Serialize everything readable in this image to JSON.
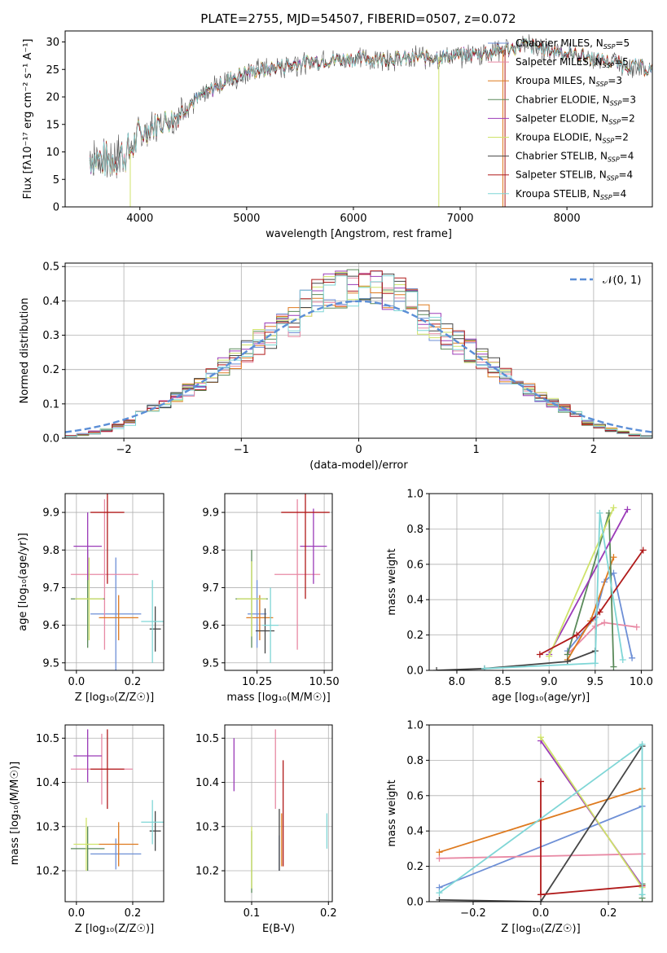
{
  "figure_title": "PLATE=2755, MJD=54507, FIBERID=0507, z=0.072",
  "colors": {
    "chabrier_miles": "#6d8fd6",
    "salpeter_miles": "#e889a4",
    "kroupa_miles": "#de7a1f",
    "chabrier_elodie": "#5a8a5a",
    "salpeter_elodie": "#9b3bb8",
    "kroupa_elodie": "#cfe36a",
    "chabrier_stelib": "#454545",
    "salpeter_stelib": "#b01a1a",
    "kroupa_stelib": "#7fd6d6",
    "gauss": "#5b8ed6",
    "data": "#555555"
  },
  "chart_data": [
    {
      "id": "spectrum",
      "type": "line",
      "xlabel": "wavelength [Angstrom, rest frame]",
      "ylabel": "Flux [fλ10⁻¹⁷ erg cm⁻² s⁻¹ A⁻¹]",
      "xlim": [
        3300,
        8800
      ],
      "ylim": [
        0,
        32
      ],
      "xticks": [
        4000,
        5000,
        6000,
        7000,
        8000
      ],
      "yticks": [
        0,
        5,
        10,
        15,
        20,
        25,
        30
      ],
      "legend_position": "right",
      "legend": [
        {
          "key": "chabrier_miles",
          "label": "Chabrier MILES, N_SSP=5"
        },
        {
          "key": "salpeter_miles",
          "label": "Salpeter MILES, N_SSP=5"
        },
        {
          "key": "kroupa_miles",
          "label": "Kroupa MILES, N_SSP=3"
        },
        {
          "key": "chabrier_elodie",
          "label": "Chabrier ELODIE, N_SSP=3"
        },
        {
          "key": "salpeter_elodie",
          "label": "Salpeter ELODIE, N_SSP=2"
        },
        {
          "key": "kroupa_elodie",
          "label": "Kroupa ELODIE, N_SSP=2"
        },
        {
          "key": "chabrier_stelib",
          "label": "Chabrier STELIB, N_SSP=4"
        },
        {
          "key": "salpeter_stelib",
          "label": "Salpeter STELIB, N_SSP=4"
        },
        {
          "key": "kroupa_stelib",
          "label": "Kroupa STELIB, N_SSP=4"
        }
      ],
      "continuum": {
        "x": [
          3530,
          3700,
          3900,
          4000,
          4150,
          4300,
          4500,
          4800,
          5000,
          5300,
          5600,
          6000,
          6500,
          7000,
          7400,
          7600,
          8000,
          8500,
          8800
        ],
        "y": [
          9,
          8.5,
          10,
          13,
          15,
          16,
          19,
          23,
          24.5,
          25.5,
          26.5,
          27,
          27,
          27.5,
          28.5,
          29.5,
          28,
          26,
          25
        ]
      },
      "wavelength_range": [
        3530,
        8800
      ]
    },
    {
      "id": "residuals",
      "type": "histogram",
      "xlabel": "(data-model)/error",
      "ylabel": "Normed distribution",
      "xlim": [
        -2.5,
        2.5
      ],
      "ylim": [
        0,
        0.51
      ],
      "xticks": [
        -2,
        -1,
        0,
        1,
        2
      ],
      "yticks": [
        0.0,
        0.1,
        0.2,
        0.3,
        0.4,
        0.5
      ],
      "grid": true,
      "legend_position": "top-right",
      "gauss_label": "𝒩(0, 1)",
      "bin_width": 0.1,
      "x_range": [
        -2.5,
        2.5
      ],
      "series_keys": [
        "chabrier_miles",
        "salpeter_miles",
        "kroupa_miles",
        "chabrier_elodie",
        "salpeter_elodie",
        "kroupa_elodie",
        "chabrier_stelib",
        "salpeter_stelib",
        "kroupa_stelib"
      ]
    },
    {
      "id": "age_vs_Z",
      "type": "errorbar",
      "xlabel": "Z [log₁₀(Z/Z☉)]",
      "ylabel": "age  [log₁₀(age/yr)]",
      "xlim": [
        -0.04,
        0.31
      ],
      "ylim": [
        9.48,
        9.95
      ],
      "xticks": [
        0.0,
        0.2
      ],
      "yticks": [
        9.5,
        9.6,
        9.7,
        9.8,
        9.9
      ],
      "grid": true,
      "points": [
        {
          "key": "chabrier_miles",
          "x": 0.14,
          "y": 9.63,
          "xerr": 0.09,
          "yerr": 0.15
        },
        {
          "key": "salpeter_miles",
          "x": 0.1,
          "y": 9.735,
          "xerr": 0.12,
          "yerr": 0.2
        },
        {
          "key": "kroupa_miles",
          "x": 0.15,
          "y": 9.62,
          "xerr": 0.07,
          "yerr": 0.06
        },
        {
          "key": "chabrier_elodie",
          "x": 0.04,
          "y": 9.67,
          "xerr": 0.06,
          "yerr": 0.13
        },
        {
          "key": "salpeter_elodie",
          "x": 0.04,
          "y": 9.81,
          "xerr": 0.05,
          "yerr": 0.09
        },
        {
          "key": "kroupa_elodie",
          "x": 0.045,
          "y": 9.67,
          "xerr": 0.05,
          "yerr": 0.11
        },
        {
          "key": "chabrier_stelib",
          "x": 0.28,
          "y": 9.59,
          "xerr": 0.02,
          "yerr": 0.06
        },
        {
          "key": "salpeter_stelib",
          "x": 0.11,
          "y": 9.9,
          "xerr": 0.06,
          "yerr": 0.19
        },
        {
          "key": "kroupa_stelib",
          "x": 0.27,
          "y": 9.61,
          "xerr": 0.04,
          "yerr": 0.11
        }
      ]
    },
    {
      "id": "age_vs_mass",
      "type": "errorbar",
      "xlabel": "mass [log₁₀(M/M☉)]",
      "ylabel": "",
      "xlim": [
        10.13,
        10.53
      ],
      "ylim": [
        9.48,
        9.95
      ],
      "xticks": [
        10.25,
        10.5
      ],
      "yticks": [
        9.5,
        9.6,
        9.7,
        9.8,
        9.9
      ],
      "grid": true,
      "points": [
        {
          "key": "chabrier_miles",
          "x": 10.25,
          "y": 9.63,
          "xerr": 0.035,
          "yerr": 0.09
        },
        {
          "key": "salpeter_miles",
          "x": 10.4,
          "y": 9.735,
          "xerr": 0.085,
          "yerr": 0.2
        },
        {
          "key": "kroupa_miles",
          "x": 10.26,
          "y": 9.62,
          "xerr": 0.05,
          "yerr": 0.06
        },
        {
          "key": "chabrier_elodie",
          "x": 10.23,
          "y": 9.67,
          "xerr": 0.06,
          "yerr": 0.13
        },
        {
          "key": "salpeter_elodie",
          "x": 10.46,
          "y": 9.81,
          "xerr": 0.05,
          "yerr": 0.1
        },
        {
          "key": "kroupa_elodie",
          "x": 10.23,
          "y": 9.67,
          "xerr": 0.055,
          "yerr": 0.1
        },
        {
          "key": "chabrier_stelib",
          "x": 10.28,
          "y": 9.585,
          "xerr": 0.035,
          "yerr": 0.06
        },
        {
          "key": "salpeter_stelib",
          "x": 10.43,
          "y": 9.9,
          "xerr": 0.09,
          "yerr": 0.23
        },
        {
          "key": "kroupa_stelib",
          "x": 10.3,
          "y": 9.6,
          "xerr": 0.03,
          "yerr": 0.1
        }
      ]
    },
    {
      "id": "massweight_vs_age",
      "type": "line",
      "xlabel": "age  [log₁₀(age/yr)]",
      "ylabel": "mass weight",
      "xlim": [
        7.7,
        10.12
      ],
      "ylim": [
        0,
        1.0
      ],
      "xticks": [
        8.0,
        8.5,
        9.0,
        9.5,
        10.0
      ],
      "yticks": [
        0.0,
        0.2,
        0.4,
        0.6,
        0.8,
        1.0
      ],
      "grid": true,
      "series": [
        {
          "key": "chabrier_miles",
          "x": [
            9.2,
            9.5,
            9.6,
            9.7,
            9.9
          ],
          "y": [
            0.11,
            0.3,
            0.5,
            0.55,
            0.07
          ]
        },
        {
          "key": "salpeter_miles",
          "x": [
            9.2,
            9.5,
            9.6,
            9.95
          ],
          "y": [
            0.09,
            0.25,
            0.27,
            0.245
          ]
        },
        {
          "key": "kroupa_miles",
          "x": [
            9.2,
            9.45,
            9.7
          ],
          "y": [
            0.06,
            0.28,
            0.64
          ]
        },
        {
          "key": "chabrier_elodie",
          "x": [
            9.2,
            9.65,
            9.7
          ],
          "y": [
            0.09,
            0.89,
            0.02
          ]
        },
        {
          "key": "salpeter_elodie",
          "x": [
            9.0,
            9.85
          ],
          "y": [
            0.09,
            0.91
          ]
        },
        {
          "key": "kroupa_elodie",
          "x": [
            9.0,
            9.7
          ],
          "y": [
            0.08,
            0.92
          ]
        },
        {
          "key": "chabrier_stelib",
          "x": [
            7.78,
            8.3,
            9.2,
            9.5
          ],
          "y": [
            0.0,
            0.01,
            0.05,
            0.11
          ]
        },
        {
          "key": "salpeter_stelib",
          "x": [
            8.9,
            9.3,
            9.55,
            10.02
          ],
          "y": [
            0.09,
            0.2,
            0.33,
            0.68
          ]
        },
        {
          "key": "kroupa_stelib",
          "x": [
            8.3,
            9.5,
            9.55,
            9.8
          ],
          "y": [
            0.01,
            0.04,
            0.89,
            0.06
          ]
        }
      ]
    },
    {
      "id": "mass_vs_Z",
      "type": "errorbar",
      "xlabel": "Z [log₁₀(Z/Z☉)]",
      "ylabel": "mass [log₁₀(M/M☉)]",
      "xlim": [
        -0.04,
        0.31
      ],
      "ylim": [
        10.13,
        10.53
      ],
      "xticks": [
        0.0,
        0.2
      ],
      "yticks": [
        10.2,
        10.3,
        10.4,
        10.5
      ],
      "grid": true,
      "points": [
        {
          "key": "chabrier_miles",
          "x": 0.14,
          "y": 10.238,
          "xerr": 0.09,
          "yerr": 0.035
        },
        {
          "key": "salpeter_miles",
          "x": 0.09,
          "y": 10.43,
          "xerr": 0.11,
          "yerr": 0.08
        },
        {
          "key": "kroupa_miles",
          "x": 0.15,
          "y": 10.26,
          "xerr": 0.07,
          "yerr": 0.05
        },
        {
          "key": "chabrier_elodie",
          "x": 0.04,
          "y": 10.25,
          "xerr": 0.06,
          "yerr": 0.05
        },
        {
          "key": "salpeter_elodie",
          "x": 0.04,
          "y": 10.46,
          "xerr": 0.05,
          "yerr": 0.06
        },
        {
          "key": "kroupa_elodie",
          "x": 0.035,
          "y": 10.26,
          "xerr": 0.045,
          "yerr": 0.06
        },
        {
          "key": "chabrier_stelib",
          "x": 0.28,
          "y": 10.29,
          "xerr": 0.02,
          "yerr": 0.045
        },
        {
          "key": "salpeter_stelib",
          "x": 0.11,
          "y": 10.43,
          "xerr": 0.06,
          "yerr": 0.09
        },
        {
          "key": "kroupa_stelib",
          "x": 0.27,
          "y": 10.31,
          "xerr": 0.04,
          "yerr": 0.05
        }
      ]
    },
    {
      "id": "mass_vs_ebv",
      "type": "errorbar",
      "xlabel": "E(B-V)",
      "ylabel": "",
      "xlim": [
        0.065,
        0.205
      ],
      "ylim": [
        10.13,
        10.53
      ],
      "xticks": [
        0.1,
        0.2
      ],
      "yticks": [
        10.2,
        10.3,
        10.4,
        10.5
      ],
      "grid": true,
      "points": [
        {
          "key": "chabrier_miles",
          "x": 0.136,
          "y": 10.24,
          "xerr": 0.0,
          "yerr": 0.04
        },
        {
          "key": "salpeter_miles",
          "x": 0.131,
          "y": 10.43,
          "xerr": 0.0,
          "yerr": 0.09
        },
        {
          "key": "kroupa_miles",
          "x": 0.139,
          "y": 10.27,
          "xerr": 0.0,
          "yerr": 0.06
        },
        {
          "key": "chabrier_elodie",
          "x": 0.1,
          "y": 10.22,
          "xerr": 0.0,
          "yerr": 0.07
        },
        {
          "key": "salpeter_elodie",
          "x": 0.077,
          "y": 10.44,
          "xerr": 0.0,
          "yerr": 0.06
        },
        {
          "key": "kroupa_elodie",
          "x": 0.1,
          "y": 10.23,
          "xerr": 0.0,
          "yerr": 0.07
        },
        {
          "key": "chabrier_stelib",
          "x": 0.136,
          "y": 10.27,
          "xerr": 0.0,
          "yerr": 0.07
        },
        {
          "key": "salpeter_stelib",
          "x": 0.141,
          "y": 10.33,
          "xerr": 0.0,
          "yerr": 0.12
        },
        {
          "key": "kroupa_stelib",
          "x": 0.198,
          "y": 10.29,
          "xerr": 0.0,
          "yerr": 0.04
        }
      ]
    },
    {
      "id": "massweight_vs_Z",
      "type": "line",
      "xlabel": "Z [log₁₀(Z/Z☉)]",
      "ylabel": "mass weight",
      "xlim": [
        -0.33,
        0.33
      ],
      "ylim": [
        0,
        1.0
      ],
      "xticks": [
        -0.2,
        0.0,
        0.2
      ],
      "yticks": [
        0.0,
        0.2,
        0.4,
        0.6,
        0.8,
        1.0
      ],
      "grid": true,
      "series": [
        {
          "key": "chabrier_miles",
          "x": [
            -0.3,
            0.3
          ],
          "y": [
            0.08,
            0.54
          ]
        },
        {
          "key": "salpeter_miles",
          "x": [
            -0.3,
            0.3
          ],
          "y": [
            0.245,
            0.27
          ]
        },
        {
          "key": "kroupa_miles",
          "x": [
            -0.3,
            0.3
          ],
          "y": [
            0.28,
            0.64
          ]
        },
        {
          "key": "chabrier_elodie",
          "x": [
            0.3,
            0.3
          ],
          "y": [
            0.02,
            0.1
          ]
        },
        {
          "key": "salpeter_elodie",
          "x": [
            0.0,
            0.3
          ],
          "y": [
            0.91,
            0.09
          ]
        },
        {
          "key": "kroupa_elodie",
          "x": [
            0.0,
            0.3
          ],
          "y": [
            0.93,
            0.08
          ]
        },
        {
          "key": "chabrier_stelib",
          "x": [
            -0.3,
            0.0,
            0.3
          ],
          "y": [
            0.01,
            0.0,
            0.88
          ]
        },
        {
          "key": "salpeter_stelib",
          "x": [
            0.0,
            0.0,
            0.3
          ],
          "y": [
            0.68,
            0.04,
            0.09
          ]
        },
        {
          "key": "kroupa_stelib",
          "x": [
            -0.3,
            0.3,
            0.3
          ],
          "y": [
            0.05,
            0.89,
            0.04
          ]
        }
      ]
    }
  ]
}
